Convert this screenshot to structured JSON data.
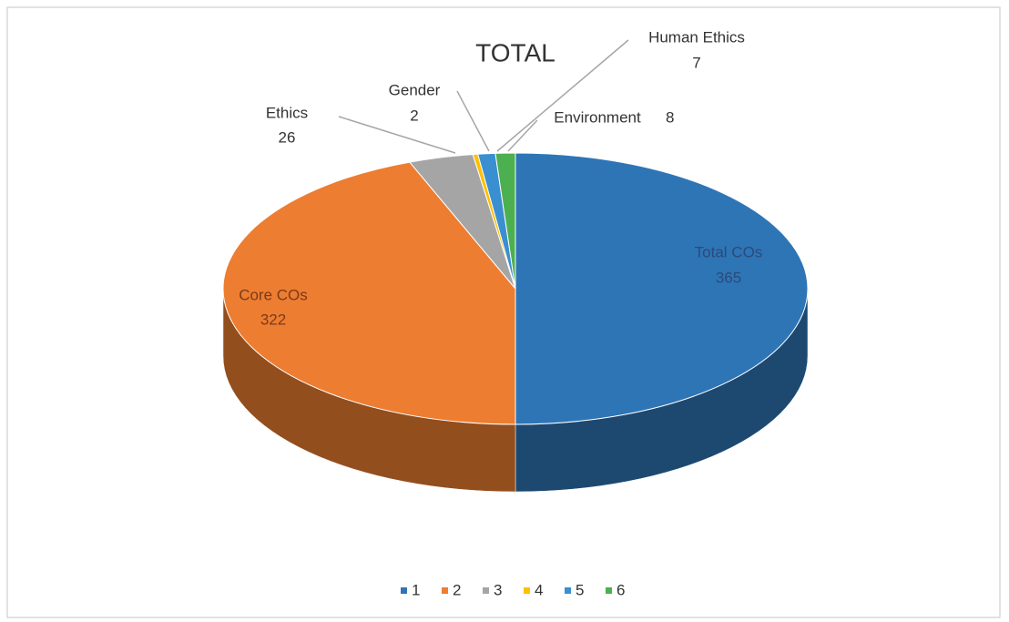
{
  "chart_data": {
    "type": "pie",
    "title": "TOTAL",
    "categories": [
      "Total COs",
      "Core COs",
      "Ethics",
      "Gender",
      "Human Ethics",
      "Environment"
    ],
    "values": [
      365,
      322,
      26,
      2,
      7,
      8
    ],
    "colors": [
      "#2e75b6",
      "#ed7d31",
      "#a5a5a5",
      "#ffc000",
      "#3a8fd0",
      "#4caf50"
    ],
    "legend": [
      "1",
      "2",
      "3",
      "4",
      "5",
      "6"
    ]
  }
}
